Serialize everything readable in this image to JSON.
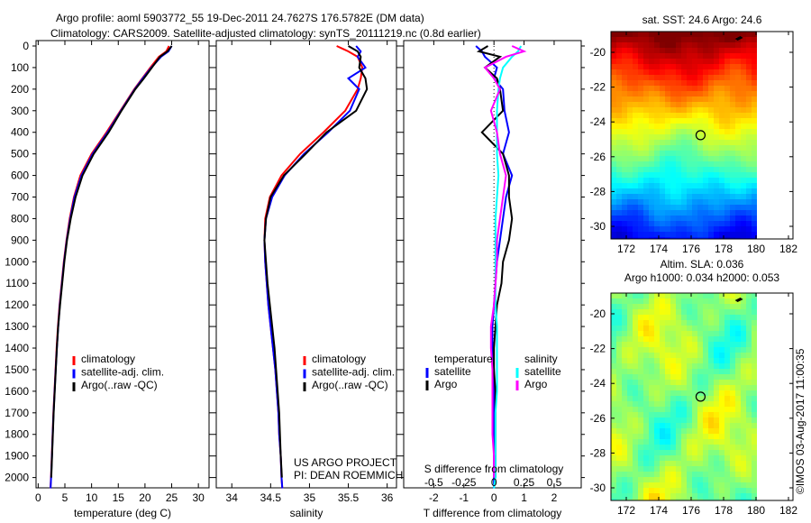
{
  "title_line1": "Argo profile: aoml 5903772_55 19-Dec-2011 24.7627S 176.5782E (DM data)",
  "title_line2": "Climatology: CARS2009. Satellite-adjusted climatology: synTS_20111219.nc (0.8d earlier)",
  "credit": "©IMOS 03-Aug-2017 11:00:35",
  "project_line1": "US ARGO PROJECT",
  "project_line2": "PI: DEAN ROEMMICH",
  "colors": {
    "climatology": "#ff0000",
    "satellite": "#0000ff",
    "argo": "#000000",
    "sal_sat": "#00ffff",
    "sal_argo": "#ff00ff"
  },
  "chart_data": [
    {
      "type": "line",
      "xlabel": "temperature (deg C)",
      "xlim": [
        -0.4,
        32
      ],
      "ylim": [
        2050,
        0
      ],
      "xticks": [
        "0",
        "5",
        "10",
        "15",
        "20",
        "25",
        "30"
      ],
      "xtickvals": [
        0,
        5,
        10,
        15,
        20,
        25,
        30
      ],
      "yticks": [
        "0",
        "100",
        "200",
        "300",
        "400",
        "500",
        "600",
        "700",
        "800",
        "900",
        "1000",
        "1100",
        "1200",
        "1300",
        "1400",
        "1500",
        "1600",
        "1700",
        "1800",
        "1900",
        "2000"
      ],
      "depth": [
        0,
        25,
        50,
        100,
        150,
        200,
        300,
        400,
        500,
        600,
        700,
        800,
        900,
        1000,
        1100,
        1200,
        1300,
        1400,
        1500,
        1600,
        1700,
        1800,
        1900,
        2000,
        2050
      ],
      "legend": [
        "climatology",
        "satellite-adj. clim.",
        "Argo(..raw -QC)"
      ],
      "series": [
        {
          "name": "climatology",
          "values": [
            24.5,
            24,
            22.6,
            21,
            19.5,
            18,
            15.4,
            12.8,
            10,
            7.9,
            6.7,
            5.9,
            5.3,
            4.8,
            4.4,
            4.0,
            3.7,
            3.45,
            3.25,
            3.05,
            2.85,
            2.7,
            2.55,
            2.4,
            2.3
          ]
        },
        {
          "name": "satellite-adj. clim.",
          "values": [
            25,
            24.4,
            23,
            21.2,
            19.6,
            18.1,
            15.5,
            13,
            10.2,
            8.1,
            6.8,
            6.0,
            5.35,
            4.85,
            4.45,
            4.05,
            3.75,
            3.5,
            3.28,
            3.08,
            2.88,
            2.72,
            2.58,
            2.42,
            2.32
          ]
        },
        {
          "name": "Argo",
          "values": [
            25,
            24.2,
            22.8,
            21.3,
            19.8,
            18.2,
            15.6,
            13.2,
            10.4,
            8.3,
            7.0,
            6.1,
            5.4,
            4.9,
            4.5,
            4.1,
            3.75,
            3.5,
            3.3,
            3.1,
            2.9,
            2.75,
            2.6,
            2.45
          ]
        }
      ]
    },
    {
      "type": "line",
      "xlabel": "salinity",
      "xlim": [
        33.8,
        36.12
      ],
      "ylim": [
        2050,
        0
      ],
      "xticks": [
        "34",
        "34.5",
        "35",
        "35.5",
        "36"
      ],
      "xtickvals": [
        34,
        34.5,
        35,
        35.5,
        36
      ],
      "depth": [
        0,
        25,
        50,
        100,
        150,
        200,
        300,
        400,
        500,
        600,
        700,
        800,
        900,
        1000,
        1100,
        1200,
        1300,
        1400,
        1500,
        1600,
        1700,
        1800,
        1900,
        2000,
        2050
      ],
      "legend": [
        "climatology",
        "satellite-adj. clim.",
        "Argo(..raw -QC)"
      ],
      "series": [
        {
          "name": "climatology",
          "values": [
            35.35,
            35.5,
            35.62,
            35.68,
            35.66,
            35.62,
            35.46,
            35.18,
            34.88,
            34.64,
            34.49,
            34.43,
            34.42,
            34.43,
            34.45,
            34.47,
            34.5,
            34.53,
            34.56,
            34.58,
            34.6,
            34.61,
            34.63,
            34.64,
            34.65
          ]
        },
        {
          "name": "satellite-adj. clim.",
          "values": [
            35.6,
            35.66,
            35.62,
            35.72,
            35.5,
            35.64,
            35.52,
            35.24,
            34.93,
            34.68,
            34.52,
            34.44,
            34.42,
            34.43,
            34.45,
            34.47,
            34.5,
            34.53,
            34.56,
            34.58,
            34.6,
            34.61,
            34.63,
            34.64,
            34.65
          ]
        },
        {
          "name": "Argo",
          "values": [
            35.5,
            35.62,
            35.66,
            35.64,
            35.72,
            35.74,
            35.6,
            35.22,
            34.95,
            34.67,
            34.5,
            34.44,
            34.42,
            34.44,
            34.46,
            34.49,
            34.52,
            34.55,
            34.57,
            34.59,
            34.61,
            34.62,
            34.63,
            34.645
          ]
        }
      ]
    },
    {
      "type": "line",
      "xlabel": "T difference from climatology",
      "xlabel2": "S difference from climatology",
      "xlim": [
        -3,
        2.9
      ],
      "ylim": [
        2050,
        0
      ],
      "xticks": [
        "-2",
        "-1",
        "0",
        "1",
        "2"
      ],
      "xtickvals": [
        -2,
        -1,
        0,
        1,
        2
      ],
      "xticks2": [
        "-0.5",
        "-0.25",
        "0",
        "0.25",
        "0.5"
      ],
      "xtickvals2": [
        -2,
        -1,
        0,
        1,
        2
      ],
      "depth": [
        0,
        25,
        50,
        100,
        150,
        200,
        300,
        400,
        500,
        600,
        700,
        800,
        900,
        1000,
        1100,
        1200,
        1300,
        1400,
        1500,
        1600,
        1700,
        1800,
        1900,
        2000,
        2050
      ],
      "legend": {
        "temperature": "temperature",
        "salinity": "salinity",
        "satellite": "satellite",
        "argo": "Argo"
      },
      "series": [
        {
          "name": "temperature satellite",
          "values": [
            -0.6,
            -0.4,
            -0.3,
            0.1,
            0.0,
            0.3,
            0.35,
            0.5,
            0.3,
            0.6,
            0.4,
            0.3,
            0.2,
            0.1,
            0.05,
            0.0,
            -0.05,
            -0.05,
            0,
            0,
            0,
            0,
            0,
            0,
            0
          ]
        },
        {
          "name": "temperature Argo",
          "values": [
            -0.2,
            -0.5,
            0.2,
            -0.3,
            0.1,
            0.2,
            0.3,
            -0.4,
            0.3,
            0.5,
            0.5,
            0.6,
            0.5,
            0.3,
            0.25,
            0.1,
            0.05,
            0.0,
            0.0,
            0.05,
            0.05,
            0.05,
            0.05,
            0.05
          ]
        },
        {
          "name": "salinity satellite",
          "values": [
            0.9,
            0.8,
            0.6,
            0.3,
            0.2,
            0.15,
            0.1,
            0.1,
            0.1,
            0.15,
            0.1,
            0.05,
            0.05,
            0.05,
            0.05,
            0.05,
            0.1,
            0.1,
            0.1,
            0.1,
            0.05,
            0.05,
            0.05,
            0.05,
            0
          ]
        },
        {
          "name": "salinity Argo",
          "values": [
            0.6,
            1.0,
            0.4,
            -0.3,
            0.0,
            0.2,
            -0.1,
            0.1,
            0.2,
            0.4,
            0.3,
            0.2,
            0.1,
            0.1,
            0.05,
            0.0,
            -0.1,
            -0.1,
            -0.05,
            -0.05,
            -0.05,
            -0.05,
            0,
            0
          ]
        }
      ]
    }
  ],
  "map_sst": {
    "title": "sat. SST: 24.6  Argo: 24.6",
    "lonticks": [
      "172",
      "174",
      "176",
      "178",
      "180",
      "182"
    ],
    "latticks": [
      "-20",
      "-22",
      "-24",
      "-26",
      "-28",
      "-30"
    ],
    "float_lon": 176.58,
    "float_lat": -24.76
  },
  "map_sla": {
    "title1": "Altim. SLA: 0.036",
    "title2": "Argo h1000: 0.034  h2000: 0.053",
    "lonticks": [
      "172",
      "174",
      "176",
      "178",
      "180",
      "182"
    ],
    "latticks": [
      "-20",
      "-22",
      "-24",
      "-26",
      "-28",
      "-30"
    ],
    "float_lon": 176.58,
    "float_lat": -24.76
  }
}
